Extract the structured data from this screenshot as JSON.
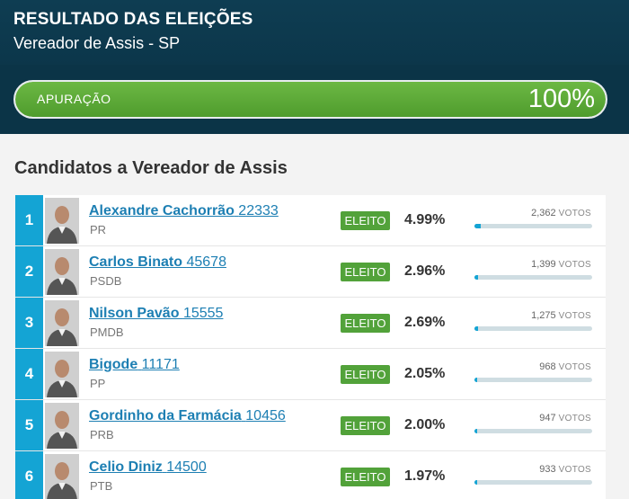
{
  "header": {
    "title": "RESULTADO DAS ELEIÇÕES",
    "subtitle": "Vereador de Assis - SP"
  },
  "apuracao": {
    "label": "APURAÇÃO",
    "percent_label": "100%",
    "fraction": 1.0
  },
  "section_title": "Candidatos a Vereador de Assis",
  "votes_unit": "VOTOS",
  "colors": {
    "rank_blue": "#14a4d4",
    "elected_green": "#52a23a",
    "header_navy": "#0b3447",
    "name_link": "#1d7fb3"
  },
  "candidates": [
    {
      "rank": "1",
      "name": "Alexandre Cachorrão",
      "number": "22333",
      "party": "PR",
      "status": "ELEITO",
      "percent": "4.99%",
      "votes": "2,362",
      "vote_fraction": 0.05,
      "photo": "candidate-photo"
    },
    {
      "rank": "2",
      "name": "Carlos Binato",
      "number": "45678",
      "party": "PSDB",
      "status": "ELEITO",
      "percent": "2.96%",
      "votes": "1,399",
      "vote_fraction": 0.03,
      "photo": "candidate-photo"
    },
    {
      "rank": "3",
      "name": "Nilson Pavão",
      "number": "15555",
      "party": "PMDB",
      "status": "ELEITO",
      "percent": "2.69%",
      "votes": "1,275",
      "vote_fraction": 0.027,
      "photo": "candidate-photo"
    },
    {
      "rank": "4",
      "name": "Bigode",
      "number": "11171",
      "party": "PP",
      "status": "ELEITO",
      "percent": "2.05%",
      "votes": "968",
      "vote_fraction": 0.02,
      "photo": "candidate-photo"
    },
    {
      "rank": "5",
      "name": "Gordinho da Farmácia",
      "number": "10456",
      "party": "PRB",
      "status": "ELEITO",
      "percent": "2.00%",
      "votes": "947",
      "vote_fraction": 0.02,
      "photo": "candidate-photo"
    },
    {
      "rank": "6",
      "name": "Celio Diniz",
      "number": "14500",
      "party": "PTB",
      "status": "ELEITO",
      "percent": "1.97%",
      "votes": "933",
      "vote_fraction": 0.02,
      "photo": "candidate-photo"
    }
  ]
}
